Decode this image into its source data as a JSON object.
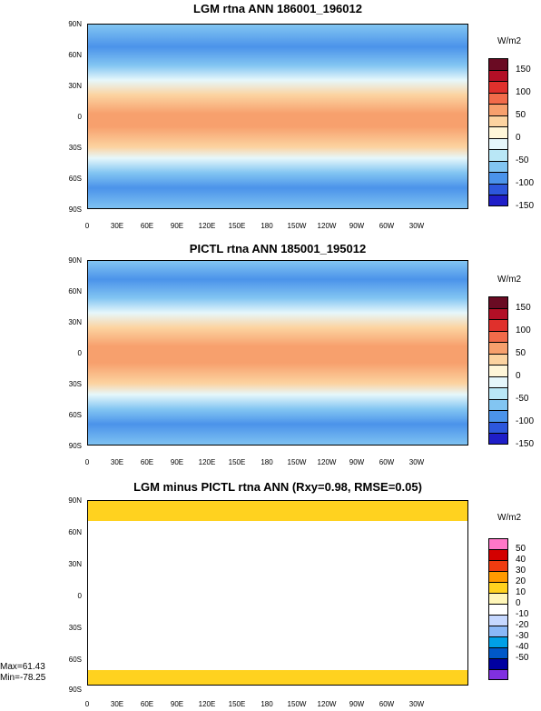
{
  "chart_data": [
    {
      "type": "heatmap",
      "title": "LGM rtna ANN 186001_196012",
      "units": "W/m2",
      "colorbar_levels": [
        "150",
        "100",
        "50",
        "0",
        "-50",
        "-100",
        "-150"
      ],
      "xticks": [
        "0",
        "30E",
        "60E",
        "90E",
        "120E",
        "150E",
        "180",
        "150W",
        "120W",
        "90W",
        "60W",
        "30W"
      ],
      "yticks": [
        "90N",
        "60N",
        "30N",
        "0",
        "30S",
        "60S",
        "90S"
      ],
      "colors": [
        "#6a0b23",
        "#b30f26",
        "#e0302c",
        "#f26b4a",
        "#f7a06d",
        "#fcd3a0",
        "#fff6d8",
        "#e6f7fb",
        "#b9e7f6",
        "#82c5f2",
        "#4b93ea",
        "#2d57dc",
        "#1f1ec8"
      ]
    },
    {
      "type": "heatmap",
      "title": "PICTL rtna ANN 185001_195012",
      "units": "W/m2",
      "colorbar_levels": [
        "150",
        "100",
        "50",
        "0",
        "-50",
        "-100",
        "-150"
      ],
      "xticks": [
        "0",
        "30E",
        "60E",
        "90E",
        "120E",
        "150E",
        "180",
        "150W",
        "120W",
        "90W",
        "60W",
        "30W"
      ],
      "yticks": [
        "90N",
        "60N",
        "30N",
        "0",
        "30S",
        "60S",
        "90S"
      ]
    },
    {
      "type": "heatmap",
      "title": "LGM minus PICTL rtna ANN (Rxy=0.98, RMSE=0.05)",
      "units": "W/m2",
      "colorbar_levels": [
        "50",
        "40",
        "30",
        "20",
        "10",
        "0",
        "-10",
        "-20",
        "-30",
        "-40",
        "-50"
      ],
      "xticks": [
        "0",
        "30E",
        "60E",
        "90E",
        "120E",
        "150E",
        "180",
        "150W",
        "120W",
        "90W",
        "60W",
        "30W"
      ],
      "yticks": [
        "90N",
        "60N",
        "30N",
        "0",
        "30S",
        "60S",
        "90S"
      ],
      "max_label": "Max=61.43",
      "min_label": "Min=-78.25",
      "colors": [
        "#ff77c8",
        "#d30000",
        "#f03c10",
        "#ff9a00",
        "#ffd21f",
        "#fff6b8",
        "#ffffff",
        "#c6d8ff",
        "#8ab8f7",
        "#00a0e6",
        "#0058c8",
        "#0000a0",
        "#8030e0"
      ]
    }
  ]
}
